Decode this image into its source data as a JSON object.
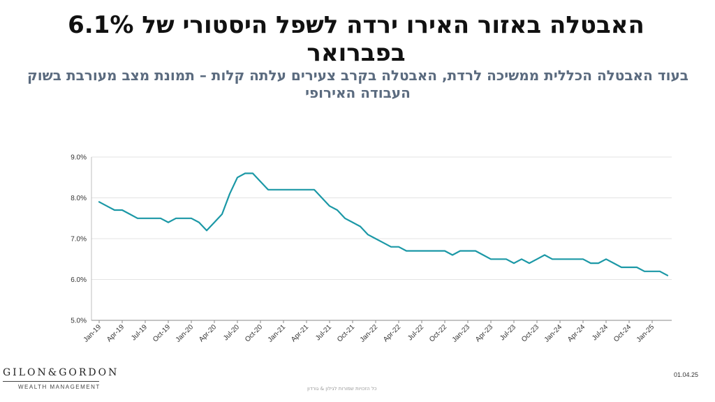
{
  "header": {
    "title": "האבטלה באזור האירו ירדה לשפל היסטורי של 6.1% בפברואר",
    "subtitle": "בעוד האבטלה הכללית ממשיכה לרדת, האבטלה בקרב צעירים עלתה קלות – תמונת מצב מעורבת בשוק העבודה האירופי"
  },
  "chart_data": {
    "type": "line",
    "ylim": [
      5.0,
      9.0
    ],
    "yticks": [
      "9.0%",
      "8.0%",
      "7.0%",
      "6.0%",
      "5.0%"
    ],
    "xtick_labels": [
      "Jan-19",
      "Apr-19",
      "Jul-19",
      "Oct-19",
      "Jan-20",
      "Apr-20",
      "Jul-20",
      "Oct-20",
      "Jan-21",
      "Apr-21",
      "Jul-21",
      "Oct-21",
      "Jan-22",
      "Apr-22",
      "Jul-22",
      "Oct-22",
      "Jan-23",
      "Apr-23",
      "Jul-23",
      "Oct-23",
      "Jan-24",
      "Apr-24",
      "Jul-24",
      "Oct-24",
      "Jan-25"
    ],
    "line_color": "#1b98a6",
    "grid": true,
    "series": [
      {
        "start": "Jan-19",
        "frequency": "monthly",
        "values": [
          7.9,
          7.8,
          7.7,
          7.7,
          7.6,
          7.5,
          7.5,
          7.5,
          7.5,
          7.4,
          7.5,
          7.5,
          7.5,
          7.4,
          7.2,
          7.4,
          7.6,
          8.1,
          8.5,
          8.6,
          8.6,
          8.4,
          8.2,
          8.2,
          8.2,
          8.2,
          8.2,
          8.2,
          8.2,
          8.0,
          7.8,
          7.7,
          7.5,
          7.4,
          7.3,
          7.1,
          7.0,
          6.9,
          6.8,
          6.8,
          6.7,
          6.7,
          6.7,
          6.7,
          6.7,
          6.7,
          6.6,
          6.7,
          6.7,
          6.7,
          6.6,
          6.5,
          6.5,
          6.5,
          6.4,
          6.5,
          6.4,
          6.5,
          6.6,
          6.5,
          6.5,
          6.5,
          6.5,
          6.5,
          6.4,
          6.4,
          6.5,
          6.4,
          6.3,
          6.3,
          6.3,
          6.2,
          6.2,
          6.2,
          6.1
        ]
      }
    ]
  },
  "logo": {
    "name": "GILON & GORDON",
    "tagline": "WEALTH MANAGEMENT"
  },
  "footer": {
    "copyright": "כל הזכויות שמורות לגילון & גורדון",
    "date": "01.04.25"
  }
}
